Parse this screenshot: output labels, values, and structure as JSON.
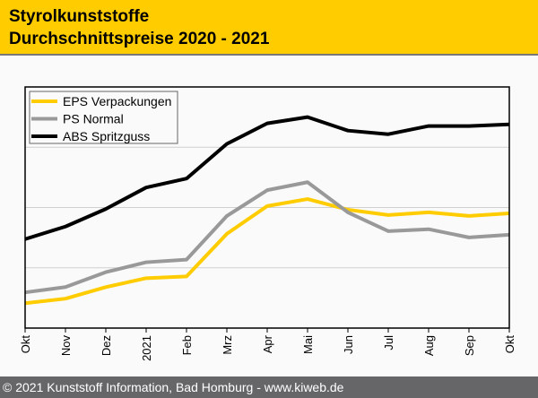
{
  "header": {
    "title_line1": "Styrolkunststoffe",
    "title_line2": "Durchschnittspreise 2020 - 2021"
  },
  "footer": {
    "text": "© 2021 Kunststoff Information, Bad Homburg - www.kiweb.de"
  },
  "chart_data": {
    "type": "line",
    "title": "Styrolkunststoffe Durchschnittspreise 2020 - 2021",
    "categories": [
      "Okt",
      "Nov",
      "Dez",
      "2021",
      "Feb",
      "Mrz",
      "Apr",
      "Mai",
      "Jun",
      "Jul",
      "Aug",
      "Sep",
      "Okt"
    ],
    "ylim": [
      0,
      100
    ],
    "grid": true,
    "gridlines": [
      25,
      50,
      75
    ],
    "legend_position": "top-left",
    "series": [
      {
        "name": "EPS Verpackungen",
        "color": "#ffcc00",
        "values": [
          10.3,
          12.2,
          17.0,
          20.7,
          21.4,
          39.1,
          50.6,
          53.5,
          49.1,
          46.9,
          48.0,
          46.5,
          47.6
        ]
      },
      {
        "name": "PS Normal",
        "color": "#999999",
        "values": [
          14.8,
          17.0,
          23.2,
          27.3,
          28.4,
          46.5,
          57.2,
          60.5,
          48.0,
          40.2,
          41.0,
          37.6,
          38.7
        ]
      },
      {
        "name": "ABS Spritzguss",
        "color": "#000000",
        "values": [
          36.9,
          42.1,
          49.4,
          58.3,
          62.0,
          76.4,
          84.9,
          87.5,
          81.9,
          80.4,
          83.8,
          83.8,
          84.5
        ]
      }
    ]
  }
}
